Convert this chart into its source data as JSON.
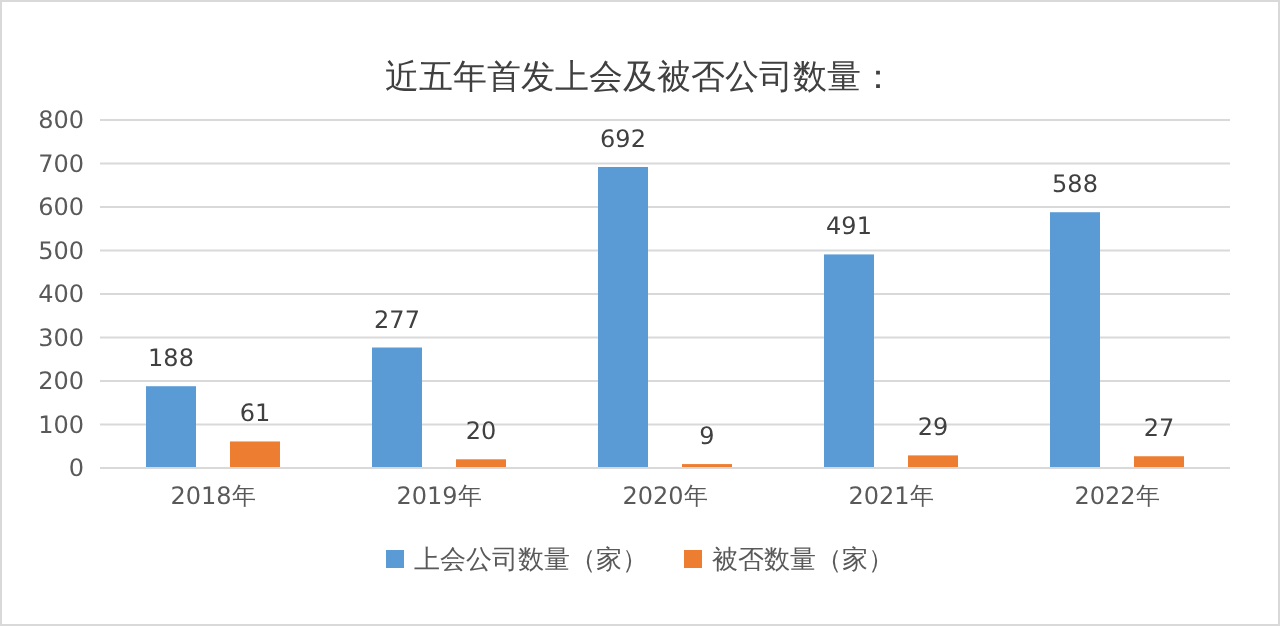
{
  "chart_data": {
    "type": "bar",
    "title": "近五年首发上会及被否公司数量：",
    "categories": [
      "2018年",
      "2019年",
      "2020年",
      "2021年",
      "2022年"
    ],
    "series": [
      {
        "name": "上会公司数量（家）",
        "color": "#5b9bd5",
        "values": [
          188,
          277,
          692,
          491,
          588
        ]
      },
      {
        "name": "被否数量（家）",
        "color": "#ed7d31",
        "values": [
          61,
          20,
          9,
          29,
          27
        ]
      }
    ],
    "ylim": [
      0,
      800
    ],
    "yticks": [
      0,
      100,
      200,
      300,
      400,
      500,
      600,
      700,
      800
    ],
    "grid": "y",
    "legend": "bottom",
    "data_labels": true
  }
}
